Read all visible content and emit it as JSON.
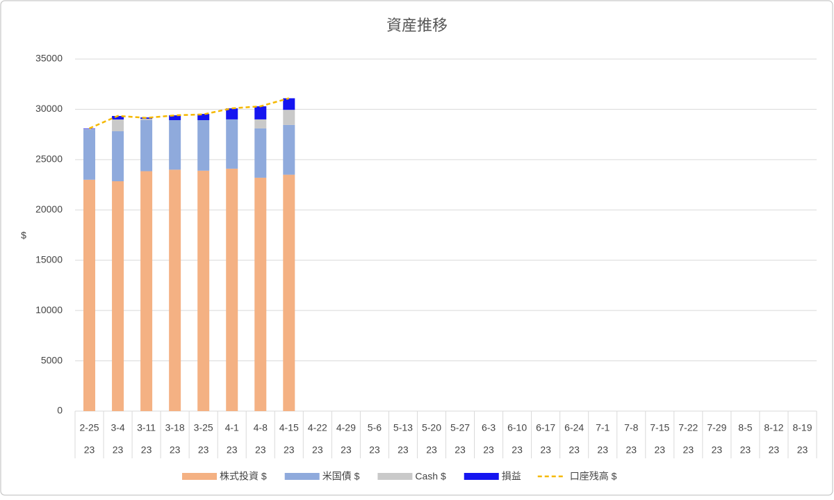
{
  "chart_data": {
    "type": "bar",
    "stacked": true,
    "title": "資産推移",
    "y_label": "$",
    "categories": [
      "2-25",
      "3-4",
      "3-11",
      "3-18",
      "3-25",
      "4-1",
      "4-8",
      "4-15",
      "4-22",
      "4-29",
      "5-6",
      "5-13",
      "5-20",
      "5-27",
      "6-3",
      "6-10",
      "6-17",
      "6-24",
      "7-1",
      "7-8",
      "7-15",
      "7-22",
      "7-29",
      "8-5",
      "8-12",
      "8-19"
    ],
    "subcategories": [
      "23",
      "23",
      "23",
      "23",
      "23",
      "23",
      "23",
      "23",
      "23",
      "23",
      "23",
      "23",
      "23",
      "23",
      "23",
      "23",
      "23",
      "23",
      "23",
      "23",
      "23",
      "23",
      "23",
      "23",
      "23",
      "23"
    ],
    "series": [
      {
        "name": "株式投資 $",
        "type": "bar",
        "color": "#f4b183",
        "values": [
          23000,
          22850,
          23850,
          24000,
          23900,
          24100,
          23200,
          23500,
          null,
          null,
          null,
          null,
          null,
          null,
          null,
          null,
          null,
          null,
          null,
          null,
          null,
          null,
          null,
          null,
          null,
          null
        ]
      },
      {
        "name": "米国債 $",
        "type": "bar",
        "color": "#8faadc",
        "values": [
          5000,
          4970,
          5075,
          4925,
          5025,
          4900,
          4900,
          4950,
          null,
          null,
          null,
          null,
          null,
          null,
          null,
          null,
          null,
          null,
          null,
          null,
          null,
          null,
          null,
          null,
          null,
          null
        ]
      },
      {
        "name": "Cash $",
        "type": "bar",
        "color": "#c9c9c9",
        "values": [
          50,
          1170,
          130,
          0,
          0,
          0,
          900,
          1500,
          null,
          null,
          null,
          null,
          null,
          null,
          null,
          null,
          null,
          null,
          null,
          null,
          null,
          null,
          null,
          null,
          null,
          null
        ]
      },
      {
        "name": "損益",
        "type": "bar",
        "color": "#1515f0",
        "values": [
          50,
          350,
          140,
          480,
          620,
          1100,
          1300,
          1150,
          null,
          null,
          null,
          null,
          null,
          null,
          null,
          null,
          null,
          null,
          null,
          null,
          null,
          null,
          null,
          null,
          null,
          null
        ]
      },
      {
        "name": "口座残高 $",
        "type": "line",
        "dashed": true,
        "color": "#f5b800",
        "values": [
          28100,
          29350,
          29150,
          29400,
          29500,
          30100,
          30300,
          31100,
          null,
          null,
          null,
          null,
          null,
          null,
          null,
          null,
          null,
          null,
          null,
          null,
          null,
          null,
          null,
          null,
          null,
          null
        ]
      }
    ],
    "ylim": [
      0,
      35000
    ],
    "yticks": [
      0,
      5000,
      10000,
      15000,
      20000,
      25000,
      30000,
      35000
    ],
    "grid": true,
    "legend": "bottom"
  }
}
